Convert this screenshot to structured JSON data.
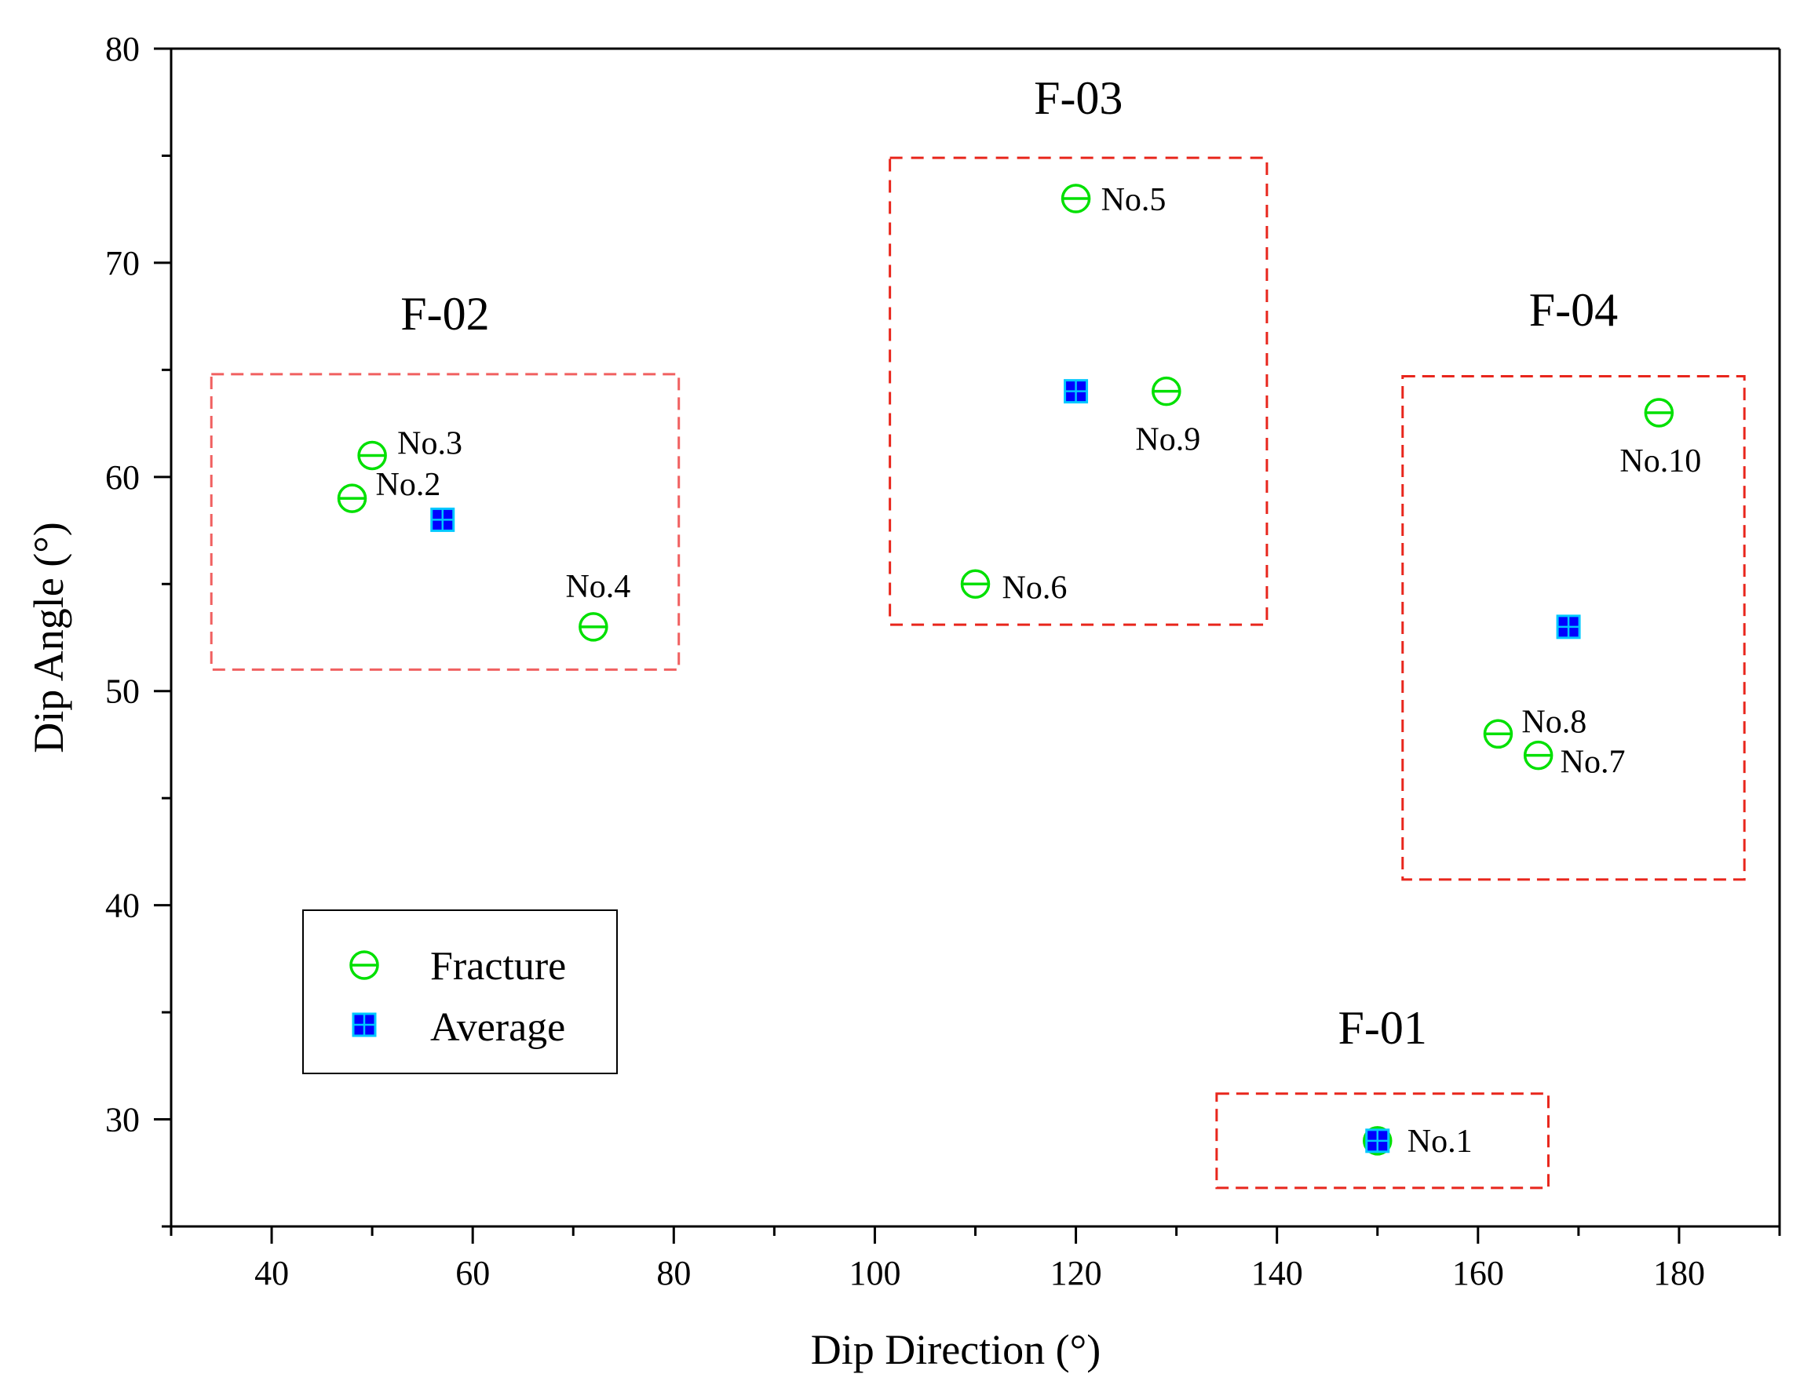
{
  "chart_data": {
    "type": "scatter",
    "title": "",
    "xlabel": "Dip Direction (°)",
    "ylabel": "Dip Angle (°)",
    "xlim": [
      30,
      190
    ],
    "ylim": [
      25,
      80
    ],
    "xticks": [
      40,
      60,
      80,
      100,
      120,
      140,
      160,
      180
    ],
    "yticks": [
      30,
      40,
      50,
      60,
      70,
      80
    ],
    "grid": false,
    "legend_position": "bottom-left",
    "series": [
      {
        "name": "Fracture",
        "marker": "circle-with-bar",
        "color": "#00e000",
        "points": [
          {
            "label": "No.1",
            "x": 150,
            "y": 29
          },
          {
            "label": "No.2",
            "x": 48,
            "y": 59
          },
          {
            "label": "No.3",
            "x": 50,
            "y": 61
          },
          {
            "label": "No.4",
            "x": 72,
            "y": 53
          },
          {
            "label": "No.5",
            "x": 120,
            "y": 73
          },
          {
            "label": "No.6",
            "x": 110,
            "y": 55
          },
          {
            "label": "No.7",
            "x": 166,
            "y": 47
          },
          {
            "label": "No.8",
            "x": 162,
            "y": 48
          },
          {
            "label": "No.9",
            "x": 129,
            "y": 64
          },
          {
            "label": "No.10",
            "x": 178,
            "y": 63
          }
        ]
      },
      {
        "name": "Average",
        "marker": "square",
        "color": "#0000ff",
        "edge_color": "#00c8ff",
        "points": [
          {
            "x": 150,
            "y": 29
          },
          {
            "x": 57,
            "y": 58
          },
          {
            "x": 120,
            "y": 64
          },
          {
            "x": 169,
            "y": 53
          }
        ]
      }
    ],
    "groups": [
      {
        "name": "F-01",
        "x_range": [
          134,
          167
        ],
        "y_range": [
          26.8,
          31.2
        ]
      },
      {
        "name": "F-02",
        "x_range": [
          34,
          80.5
        ],
        "y_range": [
          51,
          64.8
        ]
      },
      {
        "name": "F-03",
        "x_range": [
          101.5,
          139
        ],
        "y_range": [
          53.1,
          74.9
        ]
      },
      {
        "name": "F-04",
        "x_range": [
          152.5,
          186.5
        ],
        "y_range": [
          41.2,
          64.7
        ]
      }
    ]
  }
}
